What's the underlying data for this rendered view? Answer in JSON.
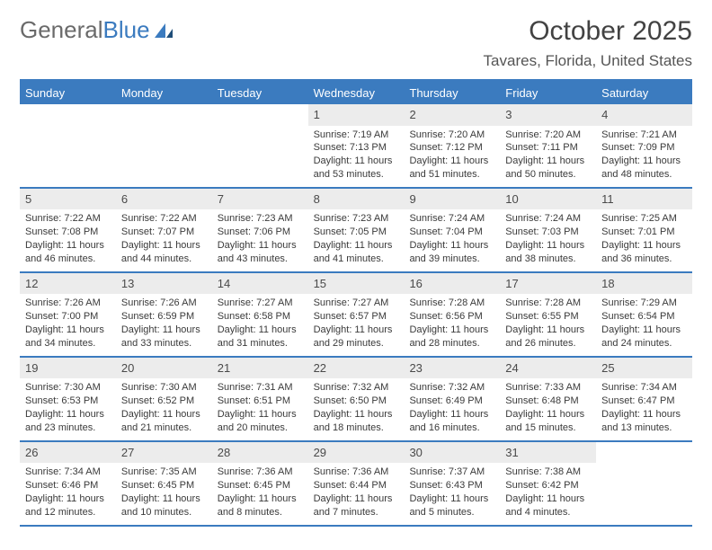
{
  "logo": {
    "text1": "General",
    "text2": "Blue"
  },
  "title": "October 2025",
  "location": "Tavares, Florida, United States",
  "colors": {
    "accent": "#3b7bbf",
    "text_dark": "#424242",
    "text_body": "#3a3a3a",
    "num_bg": "#ececec",
    "background": "#ffffff"
  },
  "day_headers": [
    "Sunday",
    "Monday",
    "Tuesday",
    "Wednesday",
    "Thursday",
    "Friday",
    "Saturday"
  ],
  "weeks": [
    [
      {
        "n": "",
        "empty": true
      },
      {
        "n": "",
        "empty": true
      },
      {
        "n": "",
        "empty": true
      },
      {
        "n": "1",
        "sr": "Sunrise: 7:19 AM",
        "ss": "Sunset: 7:13 PM",
        "d1": "Daylight: 11 hours",
        "d2": "and 53 minutes."
      },
      {
        "n": "2",
        "sr": "Sunrise: 7:20 AM",
        "ss": "Sunset: 7:12 PM",
        "d1": "Daylight: 11 hours",
        "d2": "and 51 minutes."
      },
      {
        "n": "3",
        "sr": "Sunrise: 7:20 AM",
        "ss": "Sunset: 7:11 PM",
        "d1": "Daylight: 11 hours",
        "d2": "and 50 minutes."
      },
      {
        "n": "4",
        "sr": "Sunrise: 7:21 AM",
        "ss": "Sunset: 7:09 PM",
        "d1": "Daylight: 11 hours",
        "d2": "and 48 minutes."
      }
    ],
    [
      {
        "n": "5",
        "sr": "Sunrise: 7:22 AM",
        "ss": "Sunset: 7:08 PM",
        "d1": "Daylight: 11 hours",
        "d2": "and 46 minutes."
      },
      {
        "n": "6",
        "sr": "Sunrise: 7:22 AM",
        "ss": "Sunset: 7:07 PM",
        "d1": "Daylight: 11 hours",
        "d2": "and 44 minutes."
      },
      {
        "n": "7",
        "sr": "Sunrise: 7:23 AM",
        "ss": "Sunset: 7:06 PM",
        "d1": "Daylight: 11 hours",
        "d2": "and 43 minutes."
      },
      {
        "n": "8",
        "sr": "Sunrise: 7:23 AM",
        "ss": "Sunset: 7:05 PM",
        "d1": "Daylight: 11 hours",
        "d2": "and 41 minutes."
      },
      {
        "n": "9",
        "sr": "Sunrise: 7:24 AM",
        "ss": "Sunset: 7:04 PM",
        "d1": "Daylight: 11 hours",
        "d2": "and 39 minutes."
      },
      {
        "n": "10",
        "sr": "Sunrise: 7:24 AM",
        "ss": "Sunset: 7:03 PM",
        "d1": "Daylight: 11 hours",
        "d2": "and 38 minutes."
      },
      {
        "n": "11",
        "sr": "Sunrise: 7:25 AM",
        "ss": "Sunset: 7:01 PM",
        "d1": "Daylight: 11 hours",
        "d2": "and 36 minutes."
      }
    ],
    [
      {
        "n": "12",
        "sr": "Sunrise: 7:26 AM",
        "ss": "Sunset: 7:00 PM",
        "d1": "Daylight: 11 hours",
        "d2": "and 34 minutes."
      },
      {
        "n": "13",
        "sr": "Sunrise: 7:26 AM",
        "ss": "Sunset: 6:59 PM",
        "d1": "Daylight: 11 hours",
        "d2": "and 33 minutes."
      },
      {
        "n": "14",
        "sr": "Sunrise: 7:27 AM",
        "ss": "Sunset: 6:58 PM",
        "d1": "Daylight: 11 hours",
        "d2": "and 31 minutes."
      },
      {
        "n": "15",
        "sr": "Sunrise: 7:27 AM",
        "ss": "Sunset: 6:57 PM",
        "d1": "Daylight: 11 hours",
        "d2": "and 29 minutes."
      },
      {
        "n": "16",
        "sr": "Sunrise: 7:28 AM",
        "ss": "Sunset: 6:56 PM",
        "d1": "Daylight: 11 hours",
        "d2": "and 28 minutes."
      },
      {
        "n": "17",
        "sr": "Sunrise: 7:28 AM",
        "ss": "Sunset: 6:55 PM",
        "d1": "Daylight: 11 hours",
        "d2": "and 26 minutes."
      },
      {
        "n": "18",
        "sr": "Sunrise: 7:29 AM",
        "ss": "Sunset: 6:54 PM",
        "d1": "Daylight: 11 hours",
        "d2": "and 24 minutes."
      }
    ],
    [
      {
        "n": "19",
        "sr": "Sunrise: 7:30 AM",
        "ss": "Sunset: 6:53 PM",
        "d1": "Daylight: 11 hours",
        "d2": "and 23 minutes."
      },
      {
        "n": "20",
        "sr": "Sunrise: 7:30 AM",
        "ss": "Sunset: 6:52 PM",
        "d1": "Daylight: 11 hours",
        "d2": "and 21 minutes."
      },
      {
        "n": "21",
        "sr": "Sunrise: 7:31 AM",
        "ss": "Sunset: 6:51 PM",
        "d1": "Daylight: 11 hours",
        "d2": "and 20 minutes."
      },
      {
        "n": "22",
        "sr": "Sunrise: 7:32 AM",
        "ss": "Sunset: 6:50 PM",
        "d1": "Daylight: 11 hours",
        "d2": "and 18 minutes."
      },
      {
        "n": "23",
        "sr": "Sunrise: 7:32 AM",
        "ss": "Sunset: 6:49 PM",
        "d1": "Daylight: 11 hours",
        "d2": "and 16 minutes."
      },
      {
        "n": "24",
        "sr": "Sunrise: 7:33 AM",
        "ss": "Sunset: 6:48 PM",
        "d1": "Daylight: 11 hours",
        "d2": "and 15 minutes."
      },
      {
        "n": "25",
        "sr": "Sunrise: 7:34 AM",
        "ss": "Sunset: 6:47 PM",
        "d1": "Daylight: 11 hours",
        "d2": "and 13 minutes."
      }
    ],
    [
      {
        "n": "26",
        "sr": "Sunrise: 7:34 AM",
        "ss": "Sunset: 6:46 PM",
        "d1": "Daylight: 11 hours",
        "d2": "and 12 minutes."
      },
      {
        "n": "27",
        "sr": "Sunrise: 7:35 AM",
        "ss": "Sunset: 6:45 PM",
        "d1": "Daylight: 11 hours",
        "d2": "and 10 minutes."
      },
      {
        "n": "28",
        "sr": "Sunrise: 7:36 AM",
        "ss": "Sunset: 6:45 PM",
        "d1": "Daylight: 11 hours",
        "d2": "and 8 minutes."
      },
      {
        "n": "29",
        "sr": "Sunrise: 7:36 AM",
        "ss": "Sunset: 6:44 PM",
        "d1": "Daylight: 11 hours",
        "d2": "and 7 minutes."
      },
      {
        "n": "30",
        "sr": "Sunrise: 7:37 AM",
        "ss": "Sunset: 6:43 PM",
        "d1": "Daylight: 11 hours",
        "d2": "and 5 minutes."
      },
      {
        "n": "31",
        "sr": "Sunrise: 7:38 AM",
        "ss": "Sunset: 6:42 PM",
        "d1": "Daylight: 11 hours",
        "d2": "and 4 minutes."
      },
      {
        "n": "",
        "empty": true
      }
    ]
  ]
}
